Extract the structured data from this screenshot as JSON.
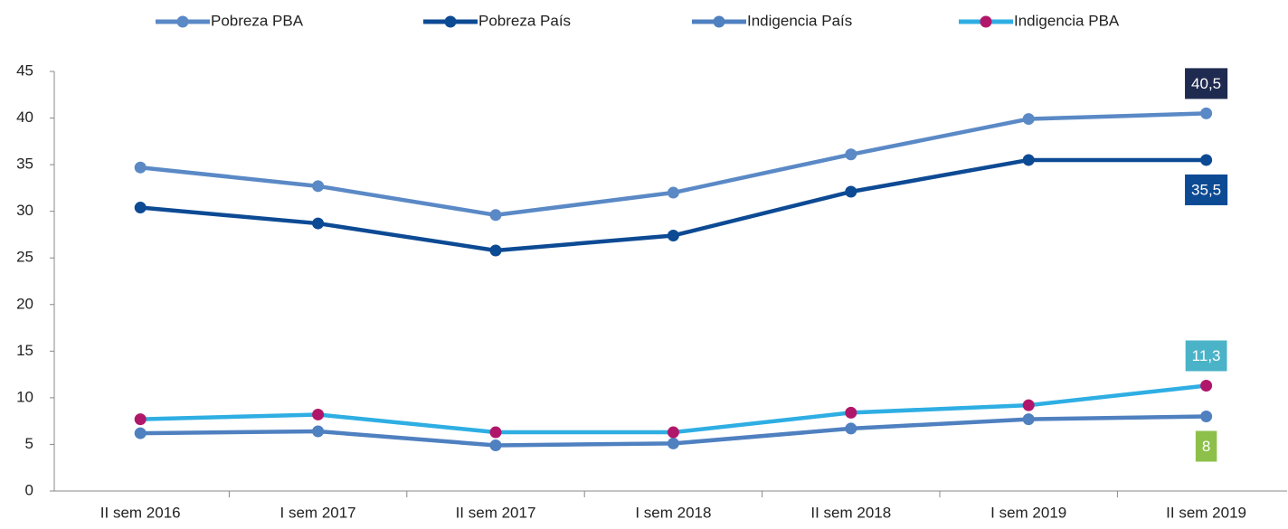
{
  "chart_data": {
    "type": "line",
    "categories": [
      "II sem 2016",
      "I sem 2017",
      "II sem 2017",
      "I sem 2018",
      "II sem 2018",
      "I sem 2019",
      "II sem 2019"
    ],
    "series": [
      {
        "name": "Pobreza PBA",
        "color": "#5a89c6",
        "marker_color": "#5a89c6",
        "label_color": "#1f2a50",
        "values": [
          34.7,
          32.7,
          29.6,
          32.0,
          36.1,
          39.9,
          40.5
        ],
        "value_labels": [
          null,
          null,
          null,
          null,
          null,
          null,
          "40,5"
        ]
      },
      {
        "name": "Pobreza País",
        "color": "#0d4a94",
        "marker_color": "#0d4a94",
        "label_color": "#0d4a94",
        "values": [
          30.4,
          28.7,
          25.8,
          27.4,
          32.1,
          35.5,
          35.5
        ],
        "value_labels": [
          null,
          null,
          null,
          null,
          null,
          null,
          "35,5"
        ]
      },
      {
        "name": "Indigencia País",
        "color": "#4f80c0",
        "marker_color": "#4f80c0",
        "label_color": "#8dc04a",
        "values": [
          6.2,
          6.4,
          4.9,
          5.1,
          6.7,
          7.7,
          8
        ],
        "value_labels": [
          null,
          null,
          null,
          null,
          null,
          null,
          "8"
        ]
      },
      {
        "name": "Indigencia PBA",
        "color": "#2eaee3",
        "marker_color": "#b0176b",
        "label_color": "#4bb3c8",
        "values": [
          7.7,
          8.2,
          6.3,
          6.3,
          8.4,
          9.2,
          11.3
        ],
        "value_labels": [
          null,
          null,
          null,
          null,
          null,
          null,
          "11,3"
        ]
      }
    ],
    "ylim": [
      0,
      45
    ],
    "yticks": [
      0,
      5,
      10,
      15,
      20,
      25,
      30,
      35,
      40,
      45
    ],
    "grid": false,
    "legend": "top"
  }
}
